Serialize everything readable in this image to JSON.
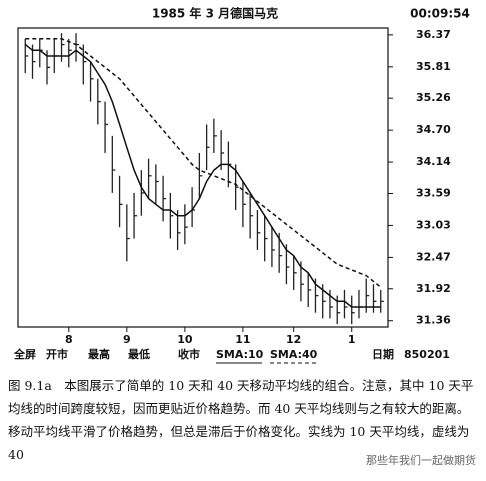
{
  "chart_data": {
    "type": "ohlc",
    "title": "1985 年 3 月德国马克",
    "clock": "00:09:54",
    "x": [
      0,
      1,
      2,
      3,
      4,
      5,
      6,
      7,
      8,
      9,
      10,
      11,
      12,
      13,
      14,
      15,
      16,
      17,
      18,
      19,
      20,
      21,
      22,
      23,
      24,
      25,
      26,
      27,
      28,
      29,
      30,
      31,
      32,
      33,
      34,
      35,
      36,
      37,
      38,
      39,
      40,
      41,
      42,
      43,
      44,
      45,
      46,
      47,
      48,
      49
    ],
    "high": [
      36.3,
      36.2,
      36.3,
      36.1,
      36.3,
      36.4,
      36.3,
      36.4,
      36.2,
      35.9,
      35.6,
      35.2,
      34.6,
      33.9,
      33.4,
      33.6,
      34.0,
      34.2,
      34.1,
      33.9,
      33.6,
      33.3,
      33.4,
      33.7,
      34.3,
      34.8,
      34.9,
      34.7,
      34.5,
      34.1,
      33.8,
      33.6,
      33.3,
      33.2,
      33.0,
      32.9,
      32.7,
      32.5,
      32.4,
      32.2,
      32.1,
      32.0,
      31.9,
      31.8,
      31.9,
      31.8,
      31.9,
      32.1,
      32.0,
      31.9
    ],
    "low": [
      35.7,
      35.6,
      35.8,
      35.5,
      35.7,
      35.9,
      35.8,
      35.9,
      35.5,
      35.2,
      34.8,
      34.3,
      33.6,
      33.0,
      32.4,
      32.8,
      33.2,
      33.5,
      33.4,
      33.1,
      32.8,
      32.6,
      32.7,
      33.0,
      33.5,
      34.0,
      34.3,
      34.0,
      33.7,
      33.3,
      33.0,
      32.8,
      32.6,
      32.4,
      32.3,
      32.2,
      32.0,
      31.9,
      31.7,
      31.6,
      31.5,
      31.4,
      31.4,
      31.3,
      31.4,
      31.3,
      31.4,
      31.5,
      31.5,
      31.5
    ],
    "close": [
      36.0,
      35.9,
      36.1,
      35.8,
      36.0,
      36.2,
      36.1,
      36.2,
      35.9,
      35.6,
      35.2,
      34.8,
      34.0,
      33.4,
      32.8,
      33.2,
      33.6,
      33.9,
      33.8,
      33.5,
      33.2,
      32.9,
      33.0,
      33.3,
      33.9,
      34.4,
      34.6,
      34.3,
      34.1,
      33.7,
      33.4,
      33.2,
      32.9,
      32.8,
      32.6,
      32.5,
      32.3,
      32.2,
      32.0,
      31.9,
      31.8,
      31.7,
      31.6,
      31.5,
      31.6,
      31.5,
      31.6,
      31.8,
      31.7,
      31.7
    ],
    "bar_color": "#222",
    "series": [
      {
        "name": "SMA:10",
        "color": "#111",
        "dashed": false,
        "values": [
          36.2,
          36.1,
          36.1,
          36.0,
          36.0,
          36.0,
          36.0,
          36.1,
          36.0,
          35.9,
          35.7,
          35.5,
          35.2,
          34.8,
          34.4,
          34.0,
          33.7,
          33.5,
          33.4,
          33.3,
          33.3,
          33.2,
          33.2,
          33.3,
          33.5,
          33.8,
          34.0,
          34.1,
          34.1,
          34.0,
          33.8,
          33.6,
          33.4,
          33.2,
          33.0,
          32.8,
          32.6,
          32.5,
          32.3,
          32.2,
          32.0,
          31.9,
          31.8,
          31.7,
          31.7,
          31.6,
          31.6,
          31.6,
          31.6,
          31.6
        ]
      },
      {
        "name": "SMA:40",
        "color": "#111",
        "dashed": true,
        "values": [
          36.3,
          36.3,
          36.3,
          36.3,
          36.3,
          36.3,
          36.25,
          36.2,
          36.1,
          36.0,
          35.9,
          35.8,
          35.7,
          35.6,
          35.45,
          35.3,
          35.15,
          35.0,
          34.85,
          34.7,
          34.55,
          34.4,
          34.25,
          34.1,
          34.0,
          33.95,
          33.9,
          33.85,
          33.8,
          33.75,
          33.65,
          33.55,
          33.45,
          33.35,
          33.25,
          33.15,
          33.05,
          32.95,
          32.85,
          32.75,
          32.65,
          32.55,
          32.45,
          32.35,
          32.3,
          32.25,
          32.2,
          32.15,
          32.05,
          31.95
        ]
      }
    ],
    "xlim": [
      -1,
      50
    ],
    "xticks": [
      {
        "value": 6,
        "label": "8"
      },
      {
        "value": 14,
        "label": "9"
      },
      {
        "value": 22,
        "label": "10"
      },
      {
        "value": 30,
        "label": "11"
      },
      {
        "value": 37,
        "label": "12"
      },
      {
        "value": 45,
        "label": "1"
      }
    ],
    "ylim": [
      31.25,
      36.49
    ],
    "yticks": [
      36.37,
      35.81,
      35.26,
      {
        "value": 34.7,
        "label": "34.70"
      },
      34.14,
      33.59,
      33.03,
      32.47,
      31.92,
      31.36
    ],
    "toolbar": [
      "全屏",
      "开市",
      "最高",
      "最低",
      "收市"
    ],
    "date_label": "日期",
    "date": "850201",
    "caption": "图 9.1a　本图展示了简单的 10 天和 40 天移动平均线的组合。注意，其中 10 天平均线的时间跨度较短，因而更贴近价格趋势。而 40 天平均线则与之有较大的距离。移动平均线平滑了价格趋势，但总是滞后于价格变化。实线为 10 天平均线，虚线为 40",
    "watermark": "那些年我们一起做期货"
  }
}
